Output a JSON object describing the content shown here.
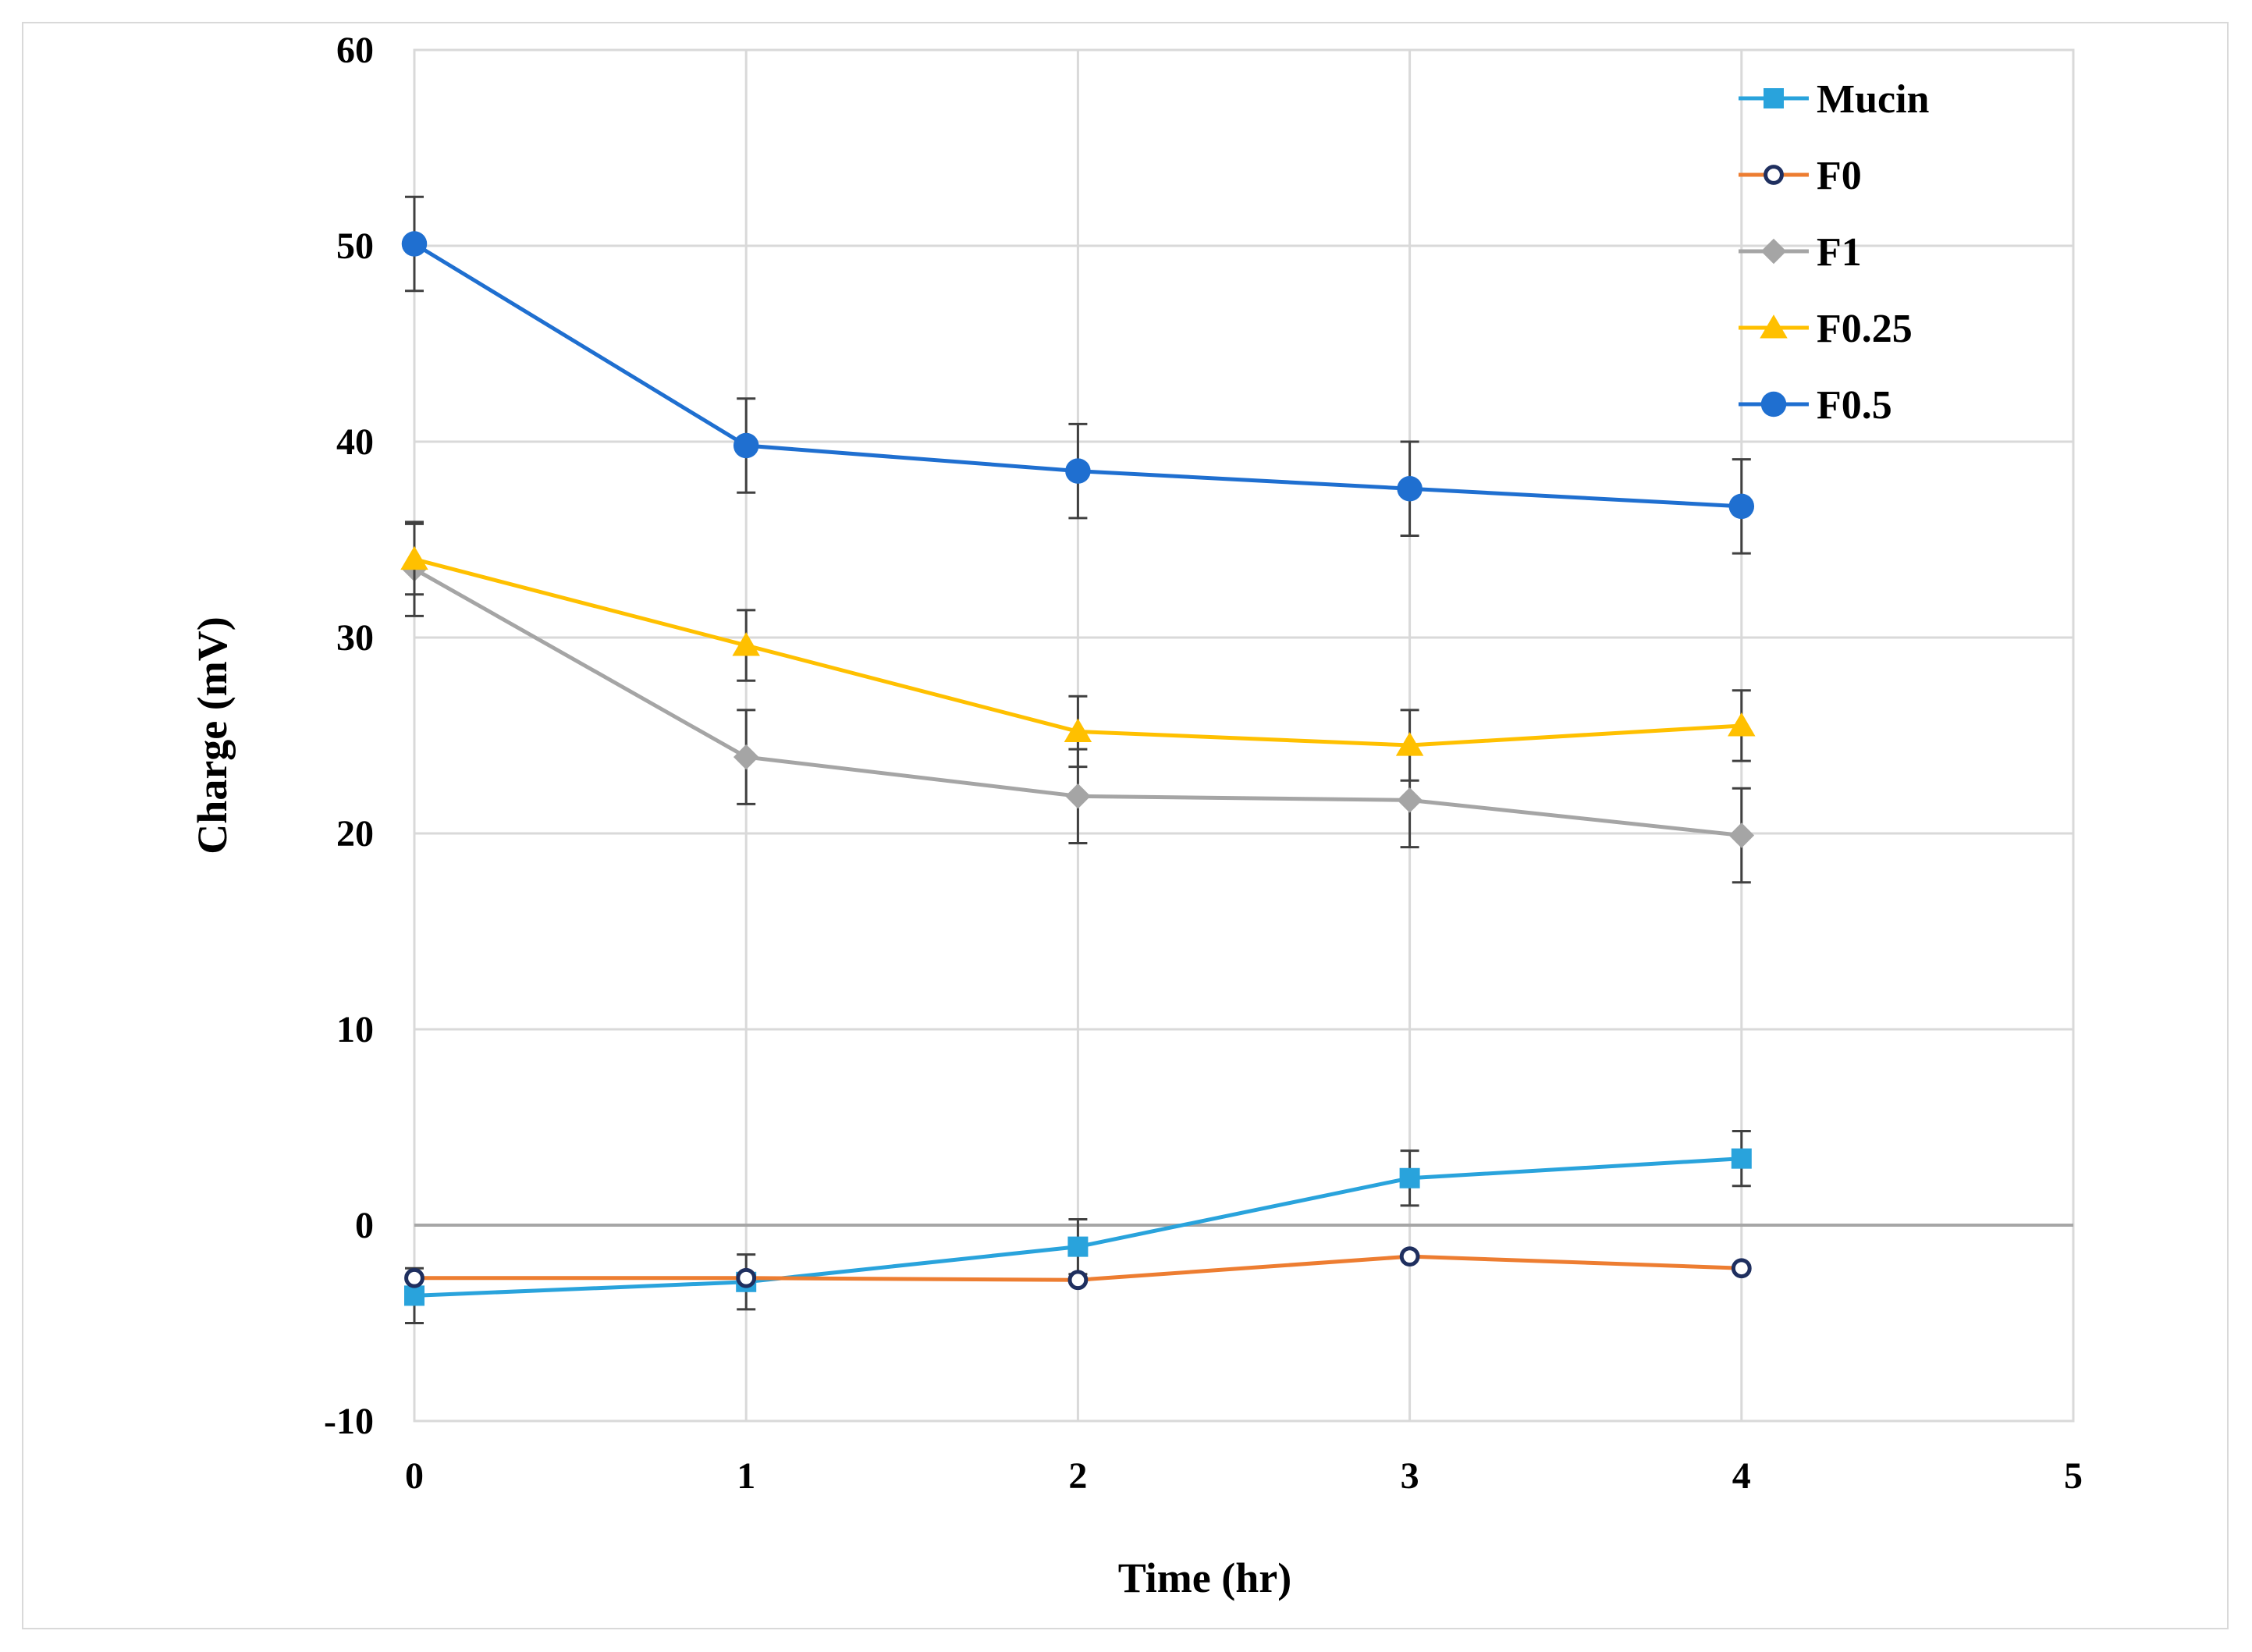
{
  "chart_data": {
    "type": "line",
    "title": "",
    "xlabel": "Time (hr)",
    "ylabel": "Charge (mV)",
    "xlim": [
      0,
      5
    ],
    "ylim": [
      -10,
      60
    ],
    "xticks": [
      "0",
      "1",
      "2",
      "3",
      "4",
      "5"
    ],
    "yticks": [
      "-10",
      "0",
      "10",
      "20",
      "30",
      "40",
      "50",
      "60"
    ],
    "grid": true,
    "legend_position": "top-right",
    "x": [
      0,
      1,
      2,
      3,
      4
    ],
    "series": [
      {
        "name": "Mucin",
        "color": "#29a3dc",
        "marker": "square",
        "values": [
          -3.6,
          -2.9,
          -1.1,
          2.4,
          3.4
        ],
        "errors": [
          1.4,
          1.4,
          1.4,
          1.4,
          1.4
        ]
      },
      {
        "name": "F0",
        "color": "#ed7d31",
        "marker": "open-circle",
        "marker_edge": "#1f2f5f",
        "values": [
          -2.7,
          -2.7,
          -2.8,
          -1.6,
          -2.2
        ],
        "errors": [
          0,
          0,
          0,
          0,
          0
        ]
      },
      {
        "name": "F1",
        "color": "#a5a5a5",
        "marker": "diamond",
        "values": [
          33.5,
          23.9,
          21.9,
          21.7,
          19.9
        ],
        "errors": [
          2.4,
          2.4,
          2.4,
          2.4,
          2.4
        ]
      },
      {
        "name": "F0.25",
        "color": "#ffc000",
        "marker": "triangle",
        "values": [
          34.0,
          29.6,
          25.2,
          24.5,
          25.5
        ],
        "errors": [
          1.8,
          1.8,
          1.8,
          1.8,
          1.8
        ]
      },
      {
        "name": "F0.5",
        "color": "#1f6fd0",
        "marker": "circle",
        "values": [
          50.1,
          39.8,
          38.5,
          37.6,
          36.7
        ],
        "errors": [
          2.4,
          2.4,
          2.4,
          2.4,
          2.4
        ]
      }
    ]
  }
}
